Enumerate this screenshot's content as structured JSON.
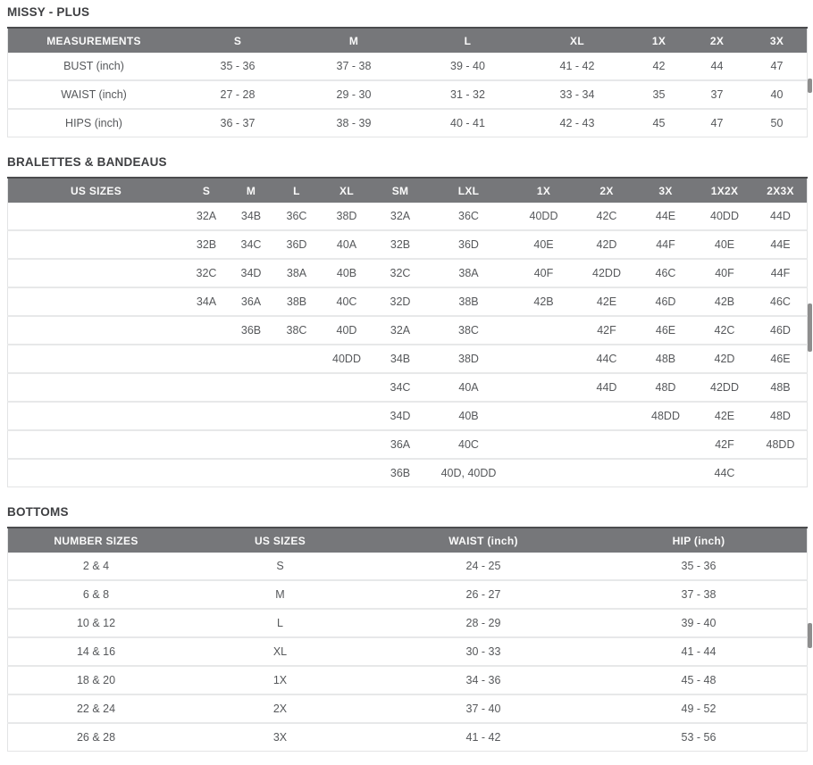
{
  "colors": {
    "header_bg": "#76777a",
    "header_text": "#fbfbfb",
    "header_top_border": "#4b4c4e",
    "body_text": "#56585b",
    "row_separator": "#e7e8e9",
    "title_text": "#3e3f42",
    "scrollbar_thumb": "#8e8e8e"
  },
  "sections": [
    {
      "title": "MISSY - PLUS",
      "table": {
        "headers": [
          "MEASUREMENTS",
          "S",
          "M",
          "L",
          "XL",
          "1X",
          "2X",
          "3X"
        ],
        "rows": [
          [
            "BUST (inch)",
            "35 - 36",
            "37 - 38",
            "39 - 40",
            "41 - 42",
            "42",
            "44",
            "47"
          ],
          [
            "WAIST (inch)",
            "27 - 28",
            "29 - 30",
            "31 - 32",
            "33 - 34",
            "35",
            "37",
            "40"
          ],
          [
            "HIPS (inch)",
            "36 - 37",
            "38 - 39",
            "40 - 41",
            "42 - 43",
            "45",
            "47",
            "50"
          ]
        ]
      }
    },
    {
      "title": "BRALETTES & BANDEAUS",
      "table": {
        "headers": [
          "US SIZES",
          "S",
          "M",
          "L",
          "XL",
          "SM",
          "LXL",
          "1X",
          "2X",
          "3X",
          "1X2X",
          "2X3X"
        ],
        "rows": [
          [
            "",
            "32A",
            "34B",
            "36C",
            "38D",
            "32A",
            "36C",
            "40DD",
            "42C",
            "44E",
            "40DD",
            "44D"
          ],
          [
            "",
            "32B",
            "34C",
            "36D",
            "40A",
            "32B",
            "36D",
            "40E",
            "42D",
            "44F",
            "40E",
            "44E"
          ],
          [
            "",
            "32C",
            "34D",
            "38A",
            "40B",
            "32C",
            "38A",
            "40F",
            "42DD",
            "46C",
            "40F",
            "44F"
          ],
          [
            "",
            "34A",
            "36A",
            "38B",
            "40C",
            "32D",
            "38B",
            "42B",
            "42E",
            "46D",
            "42B",
            "46C"
          ],
          [
            "",
            "",
            "36B",
            "38C",
            "40D",
            "32A",
            "38C",
            "",
            "42F",
            "46E",
            "42C",
            "46D"
          ],
          [
            "",
            "",
            "",
            "",
            "40DD",
            "34B",
            "38D",
            "",
            "44C",
            "48B",
            "42D",
            "46E"
          ],
          [
            "",
            "",
            "",
            "",
            "",
            "34C",
            "40A",
            "",
            "44D",
            "48D",
            "42DD",
            "48B"
          ],
          [
            "",
            "",
            "",
            "",
            "",
            "34D",
            "40B",
            "",
            "",
            "48DD",
            "42E",
            "48D"
          ],
          [
            "",
            "",
            "",
            "",
            "",
            "36A",
            "40C",
            "",
            "",
            "",
            "42F",
            "48DD"
          ],
          [
            "",
            "",
            "",
            "",
            "",
            "36B",
            "40D, 40DD",
            "",
            "",
            "",
            "44C",
            ""
          ]
        ]
      }
    },
    {
      "title": "BOTTOMS",
      "table": {
        "headers": [
          "NUMBER SIZES",
          "US SIZES",
          "WAIST (inch)",
          "HIP (inch)"
        ],
        "rows": [
          [
            "2 & 4",
            "S",
            "24 - 25",
            "35 - 36"
          ],
          [
            "6 & 8",
            "M",
            "26 - 27",
            "37 - 38"
          ],
          [
            "10 & 12",
            "L",
            "28 - 29",
            "39 - 40"
          ],
          [
            "14 & 16",
            "XL",
            "30 - 33",
            "41 - 44"
          ],
          [
            "18 & 20",
            "1X",
            "34 - 36",
            "45 - 48"
          ],
          [
            "22 & 24",
            "2X",
            "37 - 40",
            "49 - 52"
          ],
          [
            "26 & 28",
            "3X",
            "41 - 42",
            "53 - 56"
          ]
        ]
      }
    }
  ]
}
